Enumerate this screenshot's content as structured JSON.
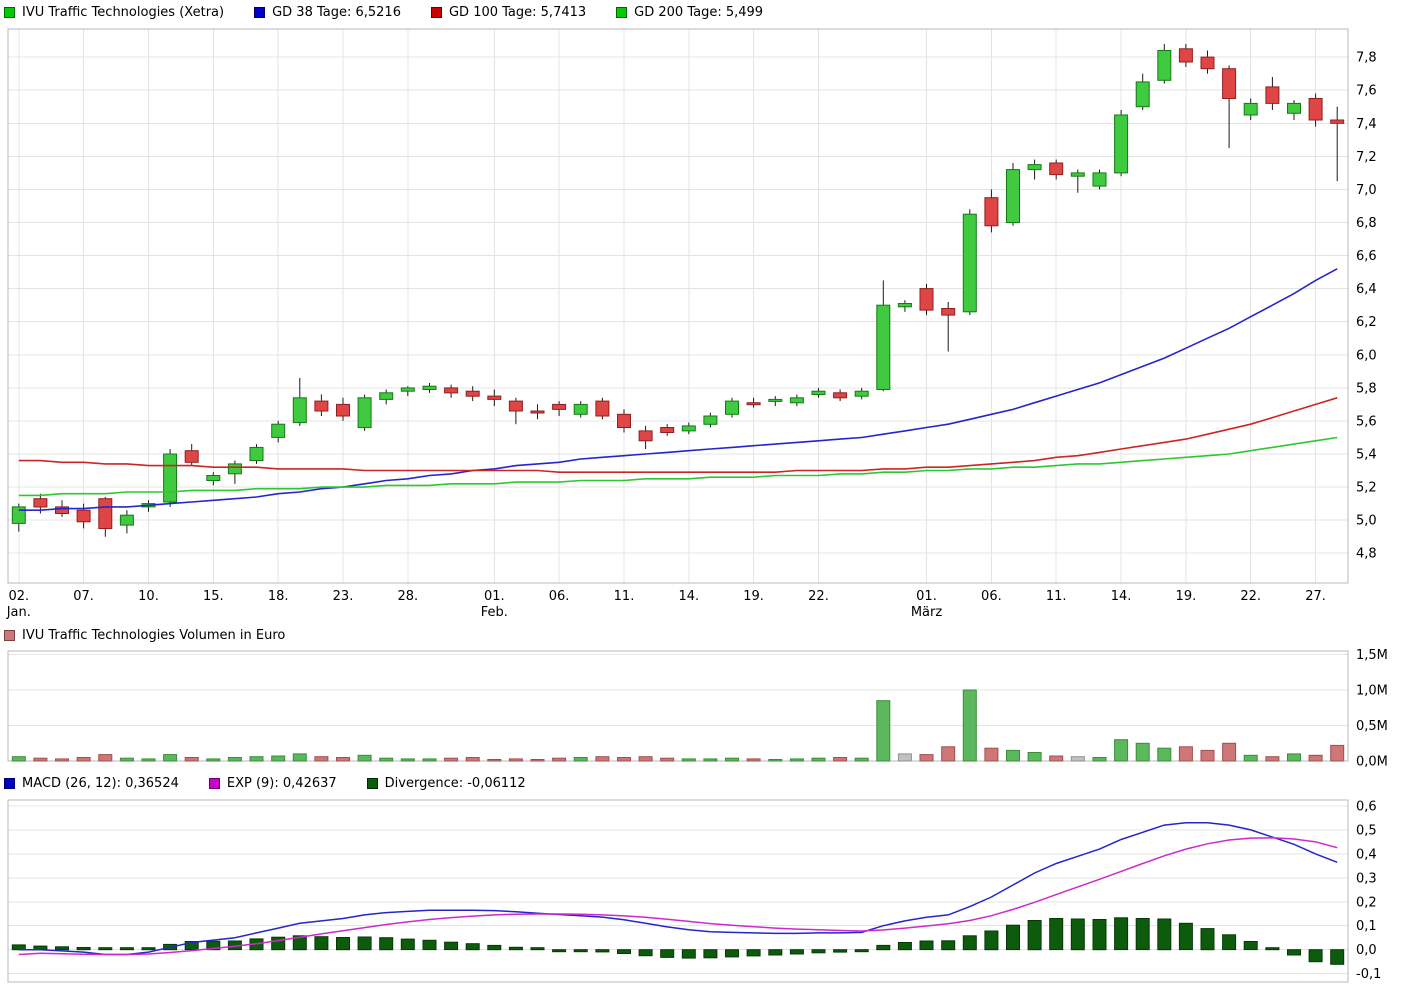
{
  "legend": {
    "price": [
      {
        "label": "IVU Traffic Technologies (Xetra)",
        "color": "#00cc00",
        "border": "#006600"
      },
      {
        "label": "GD 38 Tage: 6,5216",
        "color": "#0000cc",
        "border": "#000066"
      },
      {
        "label": "GD 100 Tage: 5,7413",
        "color": "#cc0000",
        "border": "#660000"
      },
      {
        "label": "GD 200 Tage: 5,499",
        "color": "#00cc00",
        "border": "#006600"
      }
    ],
    "volume": [
      {
        "label": "IVU Traffic Technologies Volumen in Euro",
        "color": "#c87878",
        "border": "#7a4444"
      }
    ],
    "macd": [
      {
        "label": "MACD (26, 12): 0,36524",
        "color": "#0000cc",
        "border": "#000066"
      },
      {
        "label": "EXP (9): 0,42637",
        "color": "#cc00cc",
        "border": "#660066"
      },
      {
        "label": "Divergence: -0,06112",
        "color": "#0d5c0d",
        "border": "#032803"
      }
    ]
  },
  "chart_data": [
    {
      "type": "candlestick",
      "title": "IVU Traffic Technologies (Xetra)",
      "ylim": [
        4.62,
        7.97
      ],
      "candle_colors": {
        "up": "#3fca3f",
        "up_border": "#157a15",
        "down": "#e04545",
        "down_border": "#8e2020",
        "wick": "#1a1a1a"
      },
      "dates": [
        "02.01.",
        "03.01.",
        "04.01.",
        "07.01.",
        "08.01.",
        "09.01.",
        "10.01.",
        "11.01.",
        "14.01.",
        "15.01.",
        "16.01.",
        "17.01.",
        "18.01.",
        "21.01.",
        "22.01.",
        "23.01.",
        "24.01.",
        "25.01.",
        "28.01.",
        "29.01.",
        "30.01.",
        "31.01.",
        "01.02.",
        "04.02.",
        "05.02.",
        "06.02.",
        "07.02.",
        "08.02.",
        "11.02.",
        "12.02.",
        "13.02.",
        "14.02.",
        "15.02.",
        "18.02.",
        "19.02.",
        "20.02.",
        "21.02.",
        "22.02.",
        "25.02.",
        "26.02.",
        "27.02.",
        "28.02.",
        "01.03.",
        "04.03.",
        "05.03.",
        "06.03.",
        "07.03.",
        "08.03.",
        "11.03.",
        "12.03.",
        "13.03.",
        "14.03.",
        "15.03.",
        "18.03.",
        "19.03.",
        "20.03.",
        "21.03.",
        "22.03.",
        "25.03.",
        "26.03.",
        "27.03.",
        "28.03."
      ],
      "open": [
        4.98,
        5.13,
        5.08,
        5.06,
        5.13,
        4.97,
        5.08,
        5.11,
        5.42,
        5.24,
        5.28,
        5.36,
        5.5,
        5.59,
        5.72,
        5.7,
        5.56,
        5.73,
        5.78,
        5.79,
        5.8,
        5.78,
        5.75,
        5.72,
        5.66,
        5.7,
        5.64,
        5.72,
        5.64,
        5.54,
        5.56,
        5.54,
        5.58,
        5.64,
        5.71,
        5.72,
        5.71,
        5.76,
        5.77,
        5.75,
        5.79,
        6.29,
        6.4,
        6.28,
        6.26,
        6.95,
        6.8,
        7.12,
        7.16,
        7.08,
        7.02,
        7.1,
        7.5,
        7.66,
        7.85,
        7.8,
        7.73,
        7.45,
        7.62,
        7.46,
        7.55,
        7.42
      ],
      "high": [
        5.1,
        5.16,
        5.12,
        5.1,
        5.14,
        5.06,
        5.12,
        5.43,
        5.46,
        5.29,
        5.36,
        5.46,
        5.6,
        5.86,
        5.76,
        5.74,
        5.76,
        5.79,
        5.81,
        5.83,
        5.82,
        5.81,
        5.79,
        5.74,
        5.7,
        5.72,
        5.72,
        5.74,
        5.67,
        5.57,
        5.58,
        5.59,
        5.65,
        5.74,
        5.74,
        5.75,
        5.76,
        5.8,
        5.79,
        5.8,
        6.45,
        6.33,
        6.43,
        6.32,
        6.88,
        7.0,
        7.16,
        7.18,
        7.18,
        7.12,
        7.12,
        7.48,
        7.7,
        7.88,
        7.88,
        7.84,
        7.75,
        7.55,
        7.68,
        7.54,
        7.58,
        7.5
      ],
      "low": [
        4.93,
        5.04,
        5.02,
        4.95,
        4.9,
        4.92,
        5.05,
        5.08,
        5.33,
        5.21,
        5.22,
        5.34,
        5.47,
        5.57,
        5.63,
        5.6,
        5.54,
        5.7,
        5.75,
        5.77,
        5.74,
        5.72,
        5.69,
        5.58,
        5.61,
        5.63,
        5.62,
        5.61,
        5.53,
        5.43,
        5.51,
        5.52,
        5.56,
        5.62,
        5.68,
        5.69,
        5.69,
        5.74,
        5.72,
        5.73,
        5.78,
        6.26,
        6.24,
        6.02,
        6.24,
        6.74,
        6.78,
        7.06,
        7.06,
        6.98,
        7.0,
        7.08,
        7.48,
        7.64,
        7.74,
        7.7,
        7.25,
        7.42,
        7.48,
        7.42,
        7.38,
        7.05
      ],
      "close": [
        5.08,
        5.08,
        5.04,
        4.99,
        4.95,
        5.03,
        5.1,
        5.4,
        5.35,
        5.27,
        5.34,
        5.44,
        5.58,
        5.74,
        5.66,
        5.63,
        5.74,
        5.77,
        5.8,
        5.81,
        5.77,
        5.75,
        5.73,
        5.66,
        5.65,
        5.67,
        5.7,
        5.63,
        5.56,
        5.48,
        5.53,
        5.57,
        5.63,
        5.72,
        5.7,
        5.73,
        5.74,
        5.78,
        5.74,
        5.78,
        6.3,
        6.31,
        6.27,
        6.24,
        6.85,
        6.78,
        7.12,
        7.15,
        7.09,
        7.1,
        7.1,
        7.45,
        7.65,
        7.84,
        7.77,
        7.73,
        7.55,
        7.52,
        7.52,
        7.52,
        7.42,
        7.4
      ],
      "moving_averages": [
        {
          "name": "GD 38 Tage",
          "current": "6,5216",
          "color": "#2525cc",
          "values": [
            5.06,
            5.06,
            5.07,
            5.07,
            5.08,
            5.08,
            5.09,
            5.1,
            5.11,
            5.12,
            5.13,
            5.14,
            5.16,
            5.17,
            5.19,
            5.2,
            5.22,
            5.24,
            5.25,
            5.27,
            5.28,
            5.3,
            5.31,
            5.33,
            5.34,
            5.35,
            5.37,
            5.38,
            5.39,
            5.4,
            5.41,
            5.42,
            5.43,
            5.44,
            5.45,
            5.46,
            5.47,
            5.48,
            5.49,
            5.5,
            5.52,
            5.54,
            5.56,
            5.58,
            5.61,
            5.64,
            5.67,
            5.71,
            5.75,
            5.79,
            5.83,
            5.88,
            5.93,
            5.98,
            6.04,
            6.1,
            6.16,
            6.23,
            6.3,
            6.37,
            6.45,
            6.52
          ]
        },
        {
          "name": "GD 100 Tage",
          "current": "5,7413",
          "color": "#cc2525",
          "values": [
            5.36,
            5.36,
            5.35,
            5.35,
            5.34,
            5.34,
            5.33,
            5.33,
            5.33,
            5.32,
            5.32,
            5.32,
            5.31,
            5.31,
            5.31,
            5.31,
            5.3,
            5.3,
            5.3,
            5.3,
            5.3,
            5.3,
            5.3,
            5.3,
            5.3,
            5.29,
            5.29,
            5.29,
            5.29,
            5.29,
            5.29,
            5.29,
            5.29,
            5.29,
            5.29,
            5.29,
            5.3,
            5.3,
            5.3,
            5.3,
            5.31,
            5.31,
            5.32,
            5.32,
            5.33,
            5.34,
            5.35,
            5.36,
            5.38,
            5.39,
            5.41,
            5.43,
            5.45,
            5.47,
            5.49,
            5.52,
            5.55,
            5.58,
            5.62,
            5.66,
            5.7,
            5.74
          ]
        },
        {
          "name": "GD 200 Tage",
          "current": "5,499",
          "color": "#2fc72f",
          "values": [
            5.15,
            5.15,
            5.16,
            5.16,
            5.16,
            5.17,
            5.17,
            5.17,
            5.18,
            5.18,
            5.18,
            5.19,
            5.19,
            5.19,
            5.2,
            5.2,
            5.2,
            5.21,
            5.21,
            5.21,
            5.22,
            5.22,
            5.22,
            5.23,
            5.23,
            5.23,
            5.24,
            5.24,
            5.24,
            5.25,
            5.25,
            5.25,
            5.26,
            5.26,
            5.26,
            5.27,
            5.27,
            5.27,
            5.28,
            5.28,
            5.29,
            5.29,
            5.3,
            5.3,
            5.31,
            5.31,
            5.32,
            5.32,
            5.33,
            5.34,
            5.34,
            5.35,
            5.36,
            5.37,
            5.38,
            5.39,
            5.4,
            5.42,
            5.44,
            5.46,
            5.48,
            5.5
          ]
        }
      ],
      "y_ticks": [
        {
          "v": 4.8,
          "label": "4,8"
        },
        {
          "v": 5.0,
          "label": "5,0"
        },
        {
          "v": 5.2,
          "label": "5,2"
        },
        {
          "v": 5.4,
          "label": "5,4"
        },
        {
          "v": 5.6,
          "label": "5,6"
        },
        {
          "v": 5.8,
          "label": "5,8"
        },
        {
          "v": 6.0,
          "label": "6,0"
        },
        {
          "v": 6.2,
          "label": "6,2"
        },
        {
          "v": 6.4,
          "label": "6,4"
        },
        {
          "v": 6.6,
          "label": "6,6"
        },
        {
          "v": 6.8,
          "label": "6,8"
        },
        {
          "v": 7.0,
          "label": "7,0"
        },
        {
          "v": 7.2,
          "label": "7,2"
        },
        {
          "v": 7.4,
          "label": "7,4"
        },
        {
          "v": 7.6,
          "label": "7,6"
        },
        {
          "v": 7.8,
          "label": "7,8"
        }
      ],
      "x_ticks": [
        {
          "i": 0,
          "day": "02.",
          "month": "Jan."
        },
        {
          "i": 3,
          "day": "07."
        },
        {
          "i": 6,
          "day": "10."
        },
        {
          "i": 9,
          "day": "15."
        },
        {
          "i": 12,
          "day": "18."
        },
        {
          "i": 15,
          "day": "23."
        },
        {
          "i": 18,
          "day": "28."
        },
        {
          "i": 22,
          "day": "01.",
          "month": "Feb."
        },
        {
          "i": 25,
          "day": "06."
        },
        {
          "i": 28,
          "day": "11."
        },
        {
          "i": 31,
          "day": "14."
        },
        {
          "i": 34,
          "day": "19."
        },
        {
          "i": 37,
          "day": "22."
        },
        {
          "i": 42,
          "day": "01.",
          "month": "März"
        },
        {
          "i": 45,
          "day": "06."
        },
        {
          "i": 48,
          "day": "11."
        },
        {
          "i": 51,
          "day": "14."
        },
        {
          "i": 54,
          "day": "19."
        },
        {
          "i": 57,
          "day": "22."
        },
        {
          "i": 60,
          "day": "27."
        }
      ]
    },
    {
      "type": "bar",
      "title": "IVU Traffic Technologies Volumen in Euro",
      "ylim": [
        0,
        1.55
      ],
      "values": [
        0.06,
        0.04,
        0.03,
        0.05,
        0.09,
        0.04,
        0.03,
        0.09,
        0.05,
        0.03,
        0.05,
        0.06,
        0.07,
        0.1,
        0.06,
        0.05,
        0.08,
        0.04,
        0.03,
        0.03,
        0.04,
        0.05,
        0.02,
        0.03,
        0.02,
        0.04,
        0.05,
        0.06,
        0.05,
        0.06,
        0.04,
        0.03,
        0.03,
        0.04,
        0.03,
        0.02,
        0.03,
        0.04,
        0.05,
        0.04,
        0.85,
        0.1,
        0.09,
        0.2,
        1.0,
        0.18,
        0.15,
        0.12,
        0.07,
        0.06,
        0.05,
        0.3,
        0.25,
        0.18,
        0.2,
        0.15,
        0.25,
        0.08,
        0.06,
        0.1,
        0.08,
        0.22
      ],
      "colors": [
        "g",
        "r",
        "r",
        "r",
        "r",
        "g",
        "g",
        "g",
        "r",
        "g",
        "g",
        "g",
        "g",
        "g",
        "r",
        "r",
        "g",
        "g",
        "g",
        "g",
        "r",
        "r",
        "r",
        "r",
        "r",
        "r",
        "g",
        "r",
        "r",
        "r",
        "r",
        "g",
        "g",
        "g",
        "r",
        "g",
        "g",
        "g",
        "r",
        "g",
        "g",
        "n",
        "r",
        "r",
        "g",
        "r",
        "g",
        "g",
        "r",
        "n",
        "g",
        "g",
        "g",
        "g",
        "r",
        "r",
        "r",
        "g",
        "r",
        "g",
        "r",
        "r"
      ],
      "color_map": {
        "g": {
          "fill": "#5cb85c",
          "stroke": "#3c8c3c"
        },
        "r": {
          "fill": "#cf7777",
          "stroke": "#9c5050"
        },
        "n": {
          "fill": "#c2c2c2",
          "stroke": "#8f8f8f"
        }
      },
      "y_ticks": [
        {
          "v": 0,
          "label": "0,0M"
        },
        {
          "v": 0.5,
          "label": "0,5M"
        },
        {
          "v": 1.0,
          "label": "1,0M"
        },
        {
          "v": 1.5,
          "label": "1,5M"
        }
      ]
    },
    {
      "type": "line+bar",
      "title": "MACD",
      "ylim": [
        -0.135,
        0.625
      ],
      "macd": {
        "name": "MACD (26, 12)",
        "current": "0,36524",
        "color": "#2525cc",
        "values": [
          0.0,
          0.0,
          -0.005,
          -0.01,
          -0.02,
          -0.02,
          -0.01,
          0.01,
          0.03,
          0.04,
          0.05,
          0.07,
          0.09,
          0.11,
          0.12,
          0.13,
          0.145,
          0.155,
          0.16,
          0.165,
          0.165,
          0.165,
          0.163,
          0.158,
          0.152,
          0.147,
          0.142,
          0.136,
          0.125,
          0.11,
          0.095,
          0.083,
          0.075,
          0.072,
          0.07,
          0.068,
          0.068,
          0.07,
          0.07,
          0.072,
          0.1,
          0.12,
          0.135,
          0.145,
          0.18,
          0.22,
          0.27,
          0.32,
          0.36,
          0.39,
          0.42,
          0.46,
          0.49,
          0.52,
          0.53,
          0.53,
          0.52,
          0.5,
          0.47,
          0.44,
          0.4,
          0.365
        ]
      },
      "exp": {
        "name": "EXP (9)",
        "current": "0,42637",
        "color": "#cc2acc",
        "values": [
          -0.02,
          -0.015,
          -0.017,
          -0.019,
          -0.02,
          -0.02,
          -0.018,
          -0.012,
          -0.004,
          0.005,
          0.014,
          0.025,
          0.038,
          0.052,
          0.066,
          0.079,
          0.092,
          0.105,
          0.116,
          0.126,
          0.134,
          0.14,
          0.145,
          0.148,
          0.149,
          0.149,
          0.148,
          0.145,
          0.141,
          0.135,
          0.127,
          0.118,
          0.109,
          0.102,
          0.096,
          0.09,
          0.086,
          0.083,
          0.08,
          0.078,
          0.082,
          0.09,
          0.099,
          0.108,
          0.122,
          0.142,
          0.168,
          0.198,
          0.23,
          0.262,
          0.294,
          0.327,
          0.36,
          0.392,
          0.42,
          0.442,
          0.458,
          0.466,
          0.467,
          0.462,
          0.45,
          0.426
        ]
      },
      "divergence": {
        "name": "Divergence",
        "current": "-0,06112",
        "color": "#0d5c0d",
        "border": "#063806",
        "values": [
          0.02,
          0.015,
          0.012,
          0.009,
          0.0,
          0.0,
          0.008,
          0.022,
          0.034,
          0.035,
          0.036,
          0.045,
          0.052,
          0.058,
          0.054,
          0.051,
          0.053,
          0.05,
          0.044,
          0.039,
          0.031,
          0.025,
          0.018,
          0.01,
          0.003,
          -0.002,
          -0.006,
          -0.009,
          -0.016,
          -0.025,
          -0.032,
          -0.035,
          -0.034,
          -0.03,
          -0.026,
          -0.022,
          -0.018,
          -0.013,
          -0.01,
          -0.006,
          0.018,
          0.03,
          0.036,
          0.037,
          0.058,
          0.078,
          0.102,
          0.122,
          0.13,
          0.128,
          0.126,
          0.133,
          0.13,
          0.128,
          0.11,
          0.088,
          0.062,
          0.034,
          0.003,
          -0.022,
          -0.05,
          -0.061
        ]
      },
      "y_ticks": [
        {
          "v": -0.1,
          "label": "-0,1"
        },
        {
          "v": 0.0,
          "label": "0,0"
        },
        {
          "v": 0.1,
          "label": "0,1"
        },
        {
          "v": 0.2,
          "label": "0,2"
        },
        {
          "v": 0.3,
          "label": "0,3"
        },
        {
          "v": 0.4,
          "label": "0,4"
        },
        {
          "v": 0.5,
          "label": "0,5"
        },
        {
          "v": 0.6,
          "label": "0,6"
        }
      ]
    }
  ]
}
